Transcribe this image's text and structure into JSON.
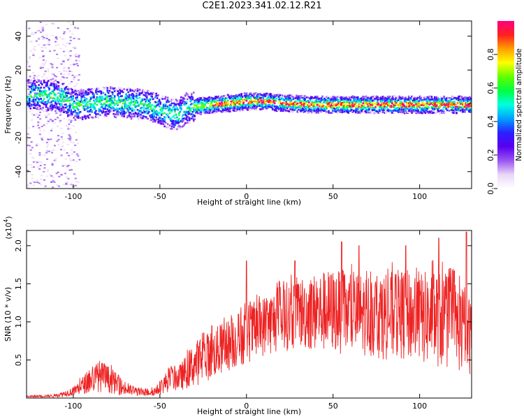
{
  "figure_title": "C2E1.2023.341.02.12.R21",
  "chart_data": [
    {
      "type": "heatmap",
      "xlabel": "Height of straight line (km)",
      "ylabel": "Frequency (Hz)",
      "xlim": [
        -127,
        130
      ],
      "ylim": [
        -50,
        49
      ],
      "xticks": [
        -100,
        -50,
        0,
        50,
        100
      ],
      "yticks": [
        -40,
        -20,
        0,
        20,
        40
      ],
      "colorbar": {
        "label": "Normalized spectral amplitude",
        "range": [
          0,
          1
        ],
        "ticks": [
          "0.0",
          "0.2",
          "0.4",
          "0.6",
          "0.8"
        ],
        "tick_values": [
          0,
          0.2,
          0.4,
          0.6,
          0.8
        ],
        "colors": [
          "#ffffff",
          "#ead6f8",
          "#9a55f0",
          "#5a00f0",
          "#2a20ff",
          "#00a0ff",
          "#00ffe0",
          "#00ff40",
          "#60ff00",
          "#ffff00",
          "#ffa000",
          "#ff2020",
          "#ff0080"
        ]
      },
      "band_center_hz": [
        [
          -120,
          6
        ],
        [
          -110,
          5
        ],
        [
          -105,
          3
        ],
        [
          -100,
          0
        ],
        [
          -95,
          0
        ],
        [
          -90,
          1
        ],
        [
          -80,
          2
        ],
        [
          -70,
          1
        ],
        [
          -60,
          0
        ],
        [
          -55,
          -1
        ],
        [
          -50,
          -3
        ],
        [
          -45,
          -5
        ],
        [
          -40,
          -6
        ],
        [
          -35,
          -2
        ],
        [
          -30,
          -1
        ],
        [
          -20,
          0
        ],
        [
          -10,
          1
        ],
        [
          0,
          2
        ],
        [
          10,
          2
        ],
        [
          20,
          1
        ],
        [
          40,
          0
        ],
        [
          60,
          0
        ],
        [
          80,
          0
        ],
        [
          100,
          0
        ],
        [
          120,
          0
        ],
        [
          130,
          0
        ]
      ]
    },
    {
      "type": "line",
      "xlabel": "Height of straight line (km)",
      "ylabel": "SNR (10 * v/v)",
      "y_multiplier": "(x10^4)",
      "y_multiplier_base": "(x10",
      "y_multiplier_exp": "4",
      "xlim": [
        -127,
        130
      ],
      "ylim": [
        0,
        2.2
      ],
      "xticks": [
        -100,
        -50,
        0,
        50,
        100
      ],
      "yticks": [
        0.5,
        1.0,
        1.5,
        2.0
      ],
      "ytick_labels": [
        "0.5",
        "1.0",
        "1.5",
        "2.0"
      ],
      "color": "#ee2222",
      "envelope": [
        [
          -127,
          0.01,
          0.03
        ],
        [
          -110,
          0.01,
          0.05
        ],
        [
          -100,
          0.03,
          0.15
        ],
        [
          -92,
          0.06,
          0.35
        ],
        [
          -85,
          0.08,
          0.5
        ],
        [
          -78,
          0.06,
          0.4
        ],
        [
          -70,
          0.03,
          0.2
        ],
        [
          -60,
          0.02,
          0.12
        ],
        [
          -52,
          0.03,
          0.15
        ],
        [
          -45,
          0.08,
          0.4
        ],
        [
          -38,
          0.1,
          0.45
        ],
        [
          -30,
          0.15,
          0.75
        ],
        [
          -20,
          0.25,
          0.9
        ],
        [
          -10,
          0.35,
          1.05
        ],
        [
          0,
          0.45,
          1.2
        ],
        [
          10,
          0.55,
          1.35
        ],
        [
          20,
          0.6,
          1.5
        ],
        [
          30,
          0.65,
          1.6
        ],
        [
          40,
          0.6,
          1.65
        ],
        [
          50,
          0.6,
          1.7
        ],
        [
          60,
          0.55,
          1.65
        ],
        [
          70,
          0.55,
          1.65
        ],
        [
          80,
          0.5,
          1.65
        ],
        [
          90,
          0.5,
          1.7
        ],
        [
          100,
          0.45,
          1.65
        ],
        [
          110,
          0.4,
          1.7
        ],
        [
          120,
          0.35,
          1.6
        ],
        [
          130,
          0.3,
          1.3
        ]
      ],
      "peaks": [
        [
          -20,
          0.95
        ],
        [
          0,
          1.8
        ],
        [
          28,
          1.8
        ],
        [
          55,
          2.05
        ],
        [
          65,
          2.0
        ],
        [
          92,
          2.0
        ],
        [
          111,
          2.1
        ],
        [
          127,
          2.18
        ]
      ]
    }
  ]
}
